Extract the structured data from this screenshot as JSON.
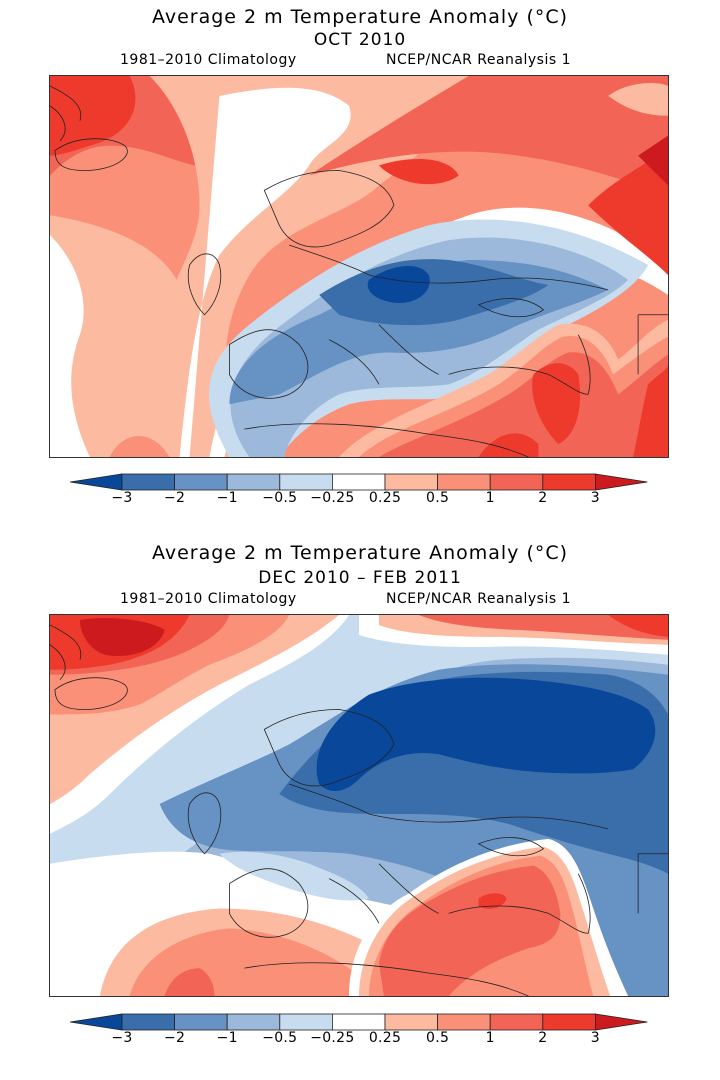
{
  "panels": [
    {
      "title": "Average 2 m Temperature Anomaly (°C)",
      "period": "OCT 2010",
      "climatology": "1981–2010 Climatology",
      "source": "NCEP/NCAR Reanalysis 1"
    },
    {
      "title": "Average 2 m Temperature Anomaly (°C)",
      "period": "DEC 2010 – FEB 2011",
      "climatology": "1981–2010 Climatology",
      "source": "NCEP/NCAR Reanalysis 1"
    }
  ],
  "colorbar": {
    "levels": [
      "-3",
      "-2",
      "-1",
      "-0.5",
      "-0.25",
      "0.25",
      "0.5",
      "1",
      "2",
      "3"
    ],
    "colors": {
      "lt_-3": "#08479a",
      "-3_-2": "#3a6eab",
      "-2_-1": "#6792c4",
      "-1_-0.5": "#9cb9db",
      "-0.5_-0.25": "#c8dcef",
      "-0.25_0.25": "#ffffff",
      "0.25_0.5": "#fcbba1",
      "0.5_1": "#fb9078",
      "1_2": "#f26455",
      "2_3": "#ee3a2c",
      "gt_3": "#cc1a1f"
    },
    "order": [
      "lt_-3",
      "-3_-2",
      "-2_-1",
      "-1_-0.5",
      "-0.5_-0.25",
      "-0.25_0.25",
      "0.25_0.5",
      "0.5_1",
      "1_2",
      "2_3",
      "gt_3"
    ]
  },
  "map_regions": {
    "oct_2010": {
      "north_atlantic_greenland": "warm (1 to 3 °C)",
      "scandinavia_north_russia": "warm (1 to 3+ °C)",
      "central_eastern_europe": "cold (-1 to -3 °C)",
      "iberia_mediterranean": "cold (-0.25 to -2 °C)",
      "turkey_middle_east_caucasus": "warm (1 to 3 °C)",
      "uk_north_sea": "near normal (-0.25 to 0.25 °C)"
    },
    "djf_2010_2011": {
      "greenland_iceland": "warm (0.5 to 3+ °C)",
      "scandinavia_northwest_russia": "very cold (below -3 °C)",
      "western_central_europe": "cold (-0.5 to -2 °C)",
      "iberia_mediterranean": "near normal to slightly cold",
      "north_africa": "warm (0.25 to 2 °C)",
      "turkey_middle_east": "warm (1 to 3 °C)"
    }
  }
}
